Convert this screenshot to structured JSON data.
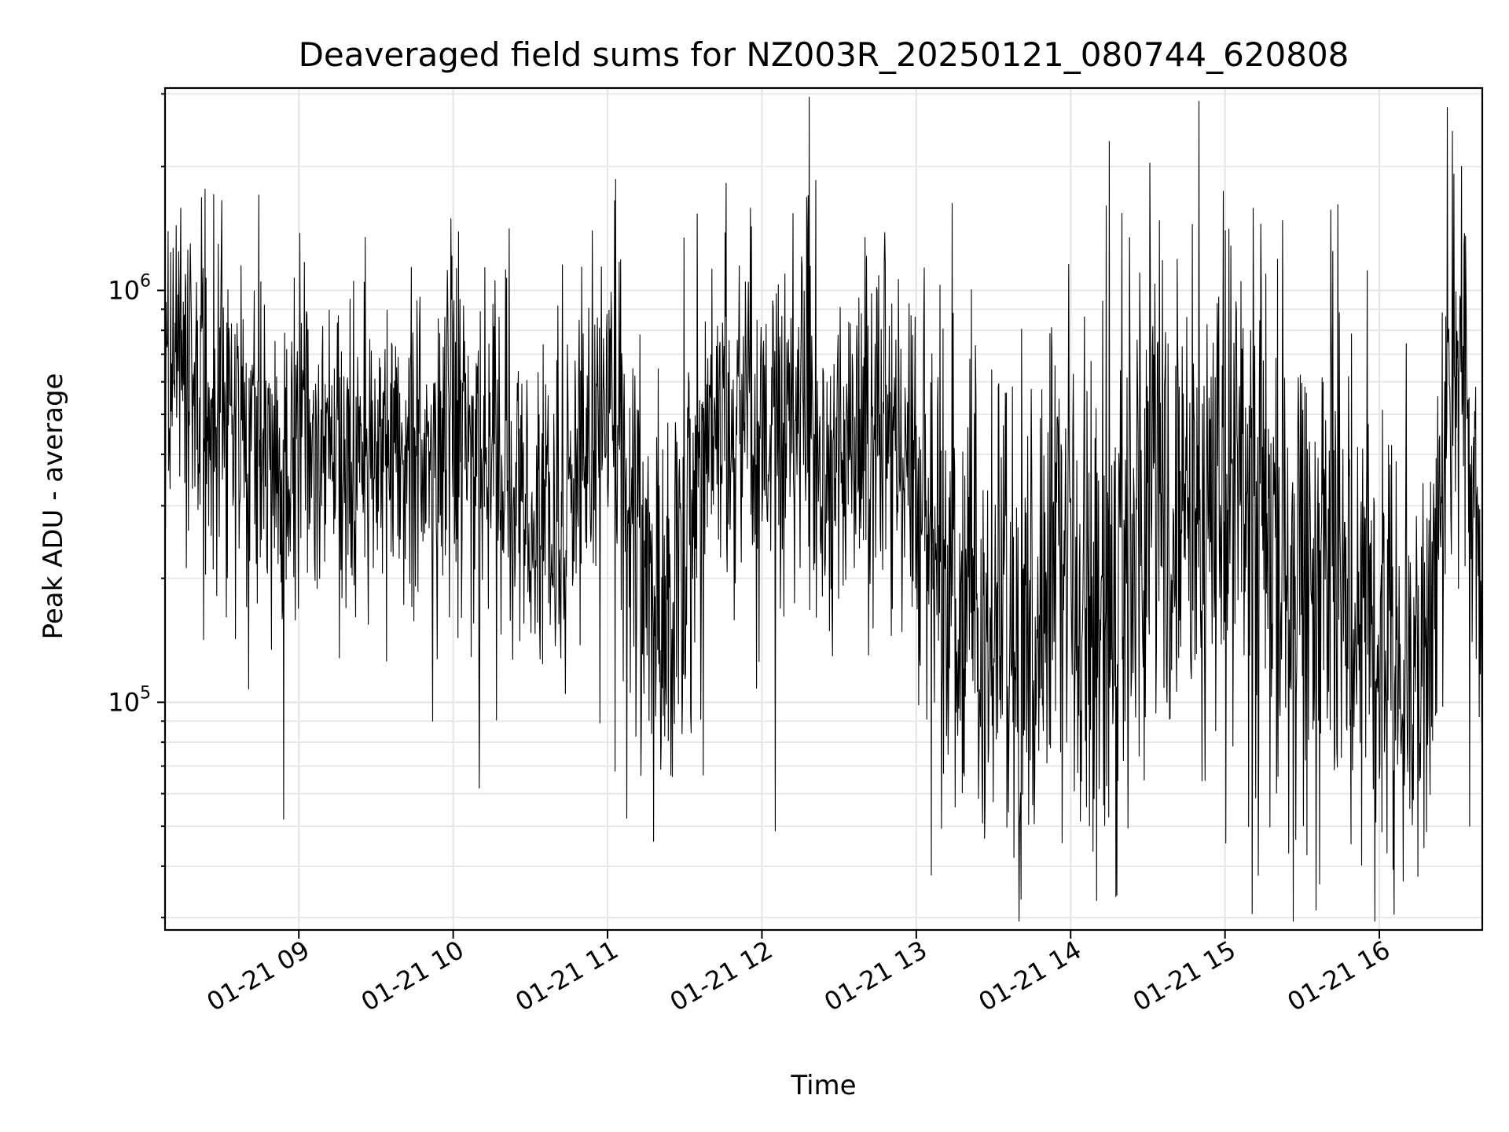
{
  "chart_data": {
    "type": "line",
    "title": "Deaveraged field sums for NZ003R_20250121_080744_620808",
    "xlabel": "Time",
    "ylabel": "Peak ADU - average",
    "yscale": "log",
    "grid": true,
    "legend": "none",
    "colors": {
      "line": "#000000",
      "grid": "#e6e6e6",
      "axes": "#000000",
      "background": "#ffffff"
    },
    "xlim": [
      "2025-01-21 08:08",
      "2025-01-21 16:40"
    ],
    "ylim": [
      28000,
      3100000
    ],
    "x_ticks": [
      {
        "value": "2025-01-21 09:00",
        "label": "01-21 09"
      },
      {
        "value": "2025-01-21 10:00",
        "label": "01-21 10"
      },
      {
        "value": "2025-01-21 11:00",
        "label": "01-21 11"
      },
      {
        "value": "2025-01-21 12:00",
        "label": "01-21 12"
      },
      {
        "value": "2025-01-21 13:00",
        "label": "01-21 13"
      },
      {
        "value": "2025-01-21 14:00",
        "label": "01-21 14"
      },
      {
        "value": "2025-01-21 15:00",
        "label": "01-21 15"
      },
      {
        "value": "2025-01-21 16:00",
        "label": "01-21 16"
      }
    ],
    "y_ticks": [
      {
        "value": 100000,
        "base": "10",
        "exp": "5"
      },
      {
        "value": 1000000,
        "base": "10",
        "exp": "6"
      }
    ],
    "series": [
      {
        "style": "dense noisy black line",
        "x": [
          "2025-01-21 08:08",
          "2025-01-21 08:20",
          "2025-01-21 08:30",
          "2025-01-21 08:40",
          "2025-01-21 08:50",
          "2025-01-21 09:00",
          "2025-01-21 09:15",
          "2025-01-21 09:30",
          "2025-01-21 09:45",
          "2025-01-21 10:00",
          "2025-01-21 10:15",
          "2025-01-21 10:30",
          "2025-01-21 10:45",
          "2025-01-21 11:00",
          "2025-01-21 11:10",
          "2025-01-21 11:20",
          "2025-01-21 11:30",
          "2025-01-21 11:45",
          "2025-01-21 12:00",
          "2025-01-21 12:15",
          "2025-01-21 12:30",
          "2025-01-21 12:45",
          "2025-01-21 13:00",
          "2025-01-21 13:10",
          "2025-01-21 13:20",
          "2025-01-21 13:30",
          "2025-01-21 13:40",
          "2025-01-21 13:50",
          "2025-01-21 14:00",
          "2025-01-21 14:10",
          "2025-01-21 14:20",
          "2025-01-21 14:30",
          "2025-01-21 14:40",
          "2025-01-21 14:50",
          "2025-01-21 15:00",
          "2025-01-21 15:10",
          "2025-01-21 15:20",
          "2025-01-21 15:30",
          "2025-01-21 15:40",
          "2025-01-21 15:50",
          "2025-01-21 16:00",
          "2025-01-21 16:10",
          "2025-01-21 16:20",
          "2025-01-21 16:30",
          "2025-01-21 16:40"
        ],
        "y": [
          650000,
          560000,
          480000,
          420000,
          380000,
          400000,
          420000,
          380000,
          420000,
          430000,
          360000,
          310000,
          330000,
          550000,
          240000,
          200000,
          230000,
          450000,
          420000,
          520000,
          410000,
          440000,
          330000,
          190000,
          150000,
          120000,
          150000,
          180000,
          260000,
          170000,
          200000,
          350000,
          260000,
          280000,
          350000,
          300000,
          220000,
          190000,
          220000,
          190000,
          170000,
          120000,
          130000,
          700000,
          100000
        ],
        "spread": [
          1.7,
          1.7,
          1.7,
          1.7,
          1.7,
          1.6,
          1.6,
          1.6,
          1.6,
          1.7,
          1.7,
          1.7,
          1.7,
          1.7,
          1.8,
          1.8,
          1.8,
          1.7,
          1.7,
          1.8,
          1.8,
          1.8,
          1.9,
          2.0,
          2.0,
          2.1,
          2.1,
          2.1,
          2.2,
          2.3,
          2.3,
          2.1,
          2.1,
          2.2,
          2.2,
          2.2,
          2.2,
          2.2,
          2.2,
          2.2,
          2.2,
          2.2,
          2.0,
          1.8,
          1.6
        ],
        "points": 2600,
        "extremes": [
          {
            "x": "2025-01-21 08:54",
            "y": 52000
          },
          {
            "x": "2025-01-21 09:52",
            "y": 90000
          },
          {
            "x": "2025-01-21 11:03",
            "y": 68000
          },
          {
            "x": "2025-01-21 11:46",
            "y": 1820000
          },
          {
            "x": "2025-01-21 12:18",
            "y": 1700000
          },
          {
            "x": "2025-01-21 13:38",
            "y": 42000
          },
          {
            "x": "2025-01-21 14:10",
            "y": 33000
          },
          {
            "x": "2025-01-21 14:15",
            "y": 2300000
          },
          {
            "x": "2025-01-21 14:18",
            "y": 34000
          },
          {
            "x": "2025-01-21 15:13",
            "y": 38000
          },
          {
            "x": "2025-01-21 16:32",
            "y": 2000000
          },
          {
            "x": "2025-01-21 16:35",
            "y": 50000
          }
        ]
      }
    ]
  }
}
